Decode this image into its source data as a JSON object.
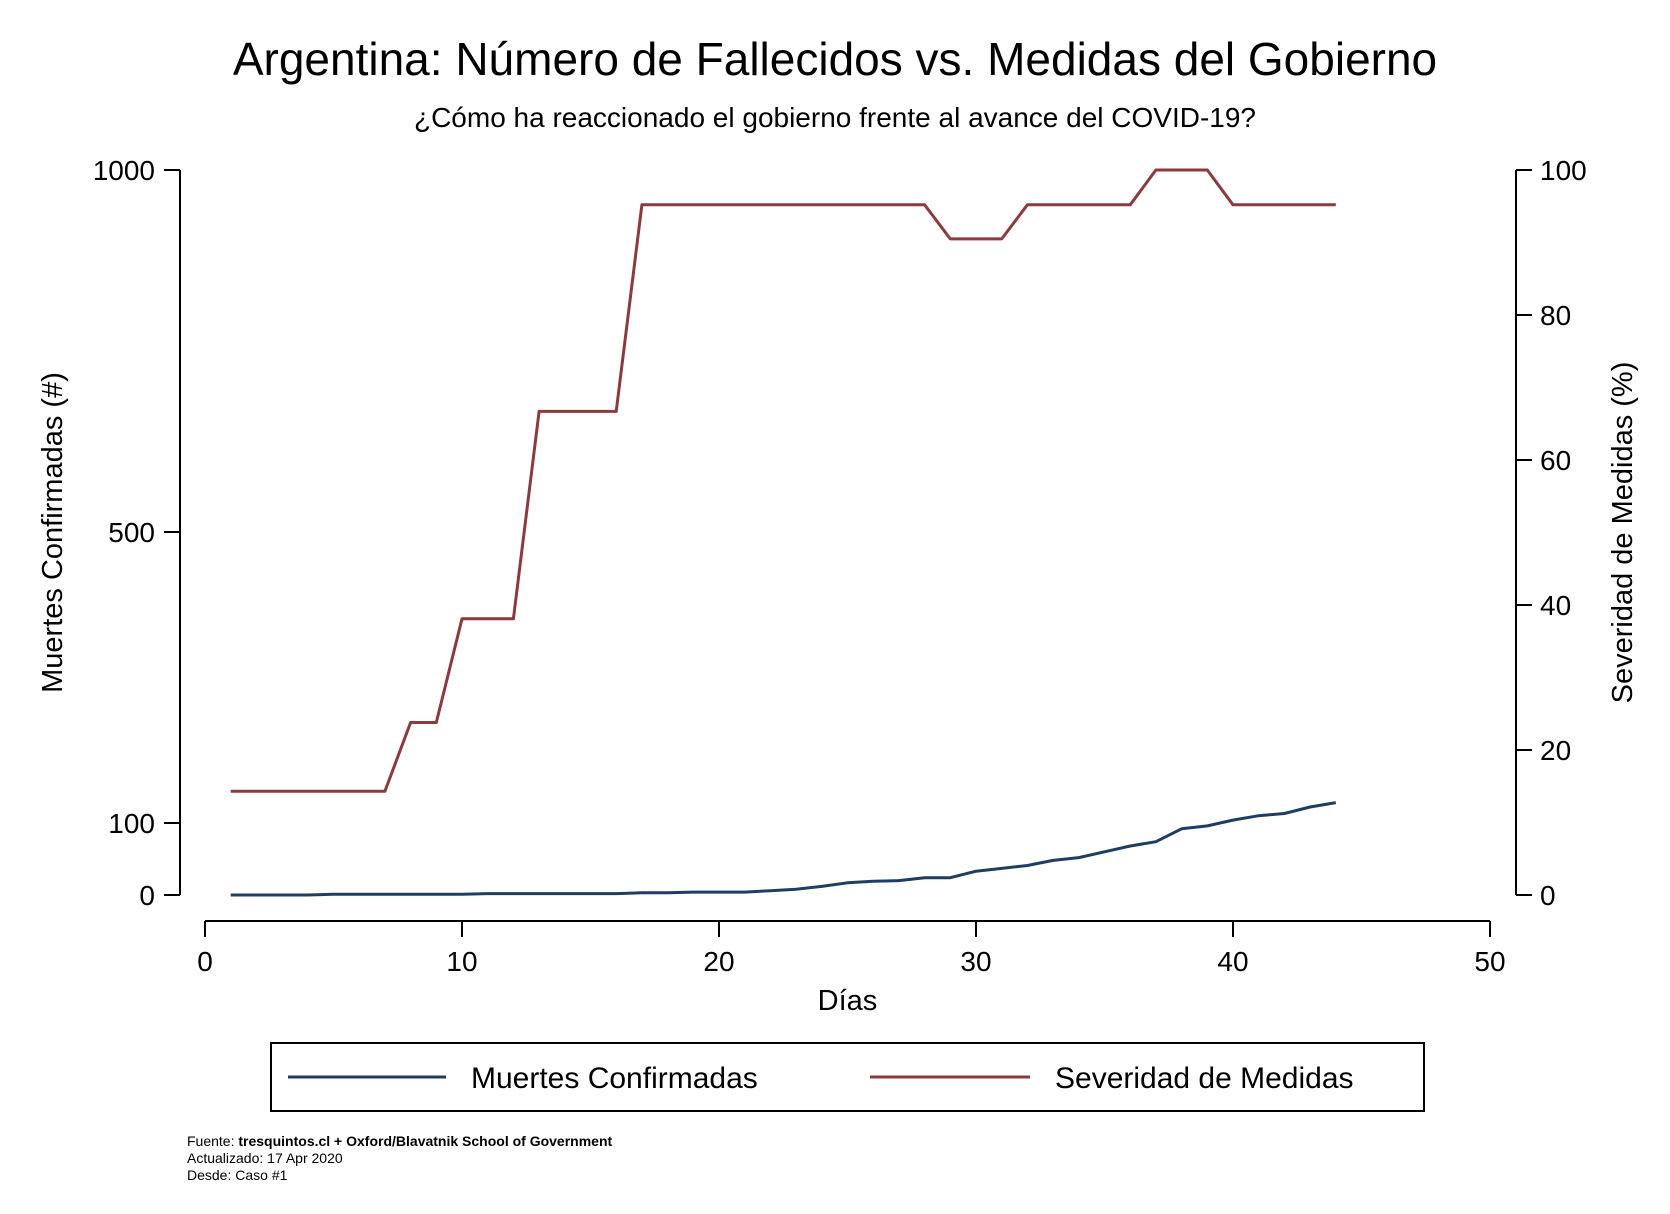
{
  "chart_data": {
    "type": "line",
    "title": "Argentina: Número de Fallecidos vs. Medidas del Gobierno",
    "subtitle": "¿Cómo ha reaccionado el gobierno frente al avance del COVID-19?",
    "xlabel": "Días",
    "ylabel_left": "Muertes Confirmadas (#)",
    "ylabel_right": "Severidad de Medidas (%)",
    "x_ticks": [
      "0",
      "10",
      "20",
      "30",
      "40",
      "50"
    ],
    "x_tick_values": [
      0,
      10,
      20,
      30,
      40,
      50
    ],
    "xlim": [
      0,
      50
    ],
    "y_left_ticks": [
      "0",
      "100",
      "500",
      "1000"
    ],
    "y_left_tick_values": [
      0,
      100,
      500,
      1000
    ],
    "ylim_left": [
      0,
      1000
    ],
    "y_right_ticks": [
      "0",
      "20",
      "40",
      "60",
      "80",
      "100"
    ],
    "y_right_tick_values": [
      0,
      20,
      40,
      60,
      80,
      100
    ],
    "ylim_right": [
      0,
      100
    ],
    "grid": false,
    "legend_position": "bottom",
    "x": [
      1,
      2,
      3,
      4,
      5,
      6,
      7,
      8,
      9,
      10,
      11,
      12,
      13,
      14,
      15,
      16,
      17,
      18,
      19,
      20,
      21,
      22,
      23,
      24,
      25,
      26,
      27,
      28,
      29,
      30,
      31,
      32,
      33,
      34,
      35,
      36,
      37,
      38,
      39,
      40,
      41,
      42,
      43,
      44
    ],
    "series": [
      {
        "name": "Muertes Confirmadas",
        "axis": "left",
        "color": "#1f3d63",
        "values": [
          0,
          0,
          0,
          0,
          1,
          1,
          1,
          1,
          1,
          1,
          2,
          2,
          2,
          2,
          2,
          2,
          3,
          3,
          4,
          4,
          4,
          6,
          8,
          12,
          17,
          19,
          20,
          24,
          24,
          33,
          37,
          41,
          48,
          52,
          60,
          68,
          74,
          92,
          96,
          104,
          110,
          113,
          122,
          128
        ]
      },
      {
        "name": "Severidad de Medidas",
        "axis": "right",
        "color": "#8b3a3f",
        "values": [
          14.3,
          14.3,
          14.3,
          14.3,
          14.3,
          14.3,
          14.3,
          23.8,
          23.8,
          38.1,
          38.1,
          38.1,
          66.7,
          66.7,
          66.7,
          66.7,
          95.2,
          95.2,
          95.2,
          95.2,
          95.2,
          95.2,
          95.2,
          95.2,
          95.2,
          95.2,
          95.2,
          95.2,
          90.5,
          90.5,
          90.5,
          95.2,
          95.2,
          95.2,
          95.2,
          95.2,
          100,
          100,
          100,
          95.2,
          95.2,
          95.2,
          95.2,
          95.2
        ]
      }
    ]
  },
  "footer": {
    "source_label": "Fuente: ",
    "source_value": "tresquintos.cl + Oxford/Blavatnik School of Government",
    "updated": "Actualizado: 17 Apr 2020",
    "since": "Desde: Caso #1"
  }
}
